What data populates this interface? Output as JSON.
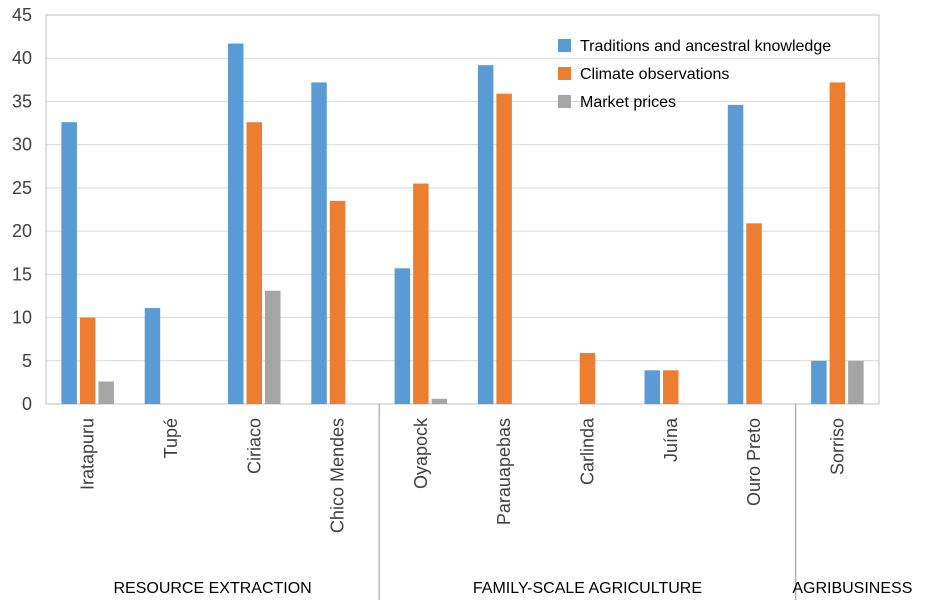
{
  "chart_data": {
    "type": "bar",
    "categories": [
      "Iratapuru",
      "Tupé",
      "Ciriaco",
      "Chico Mendes",
      "Oyapock",
      "Parauapebas",
      "Carlinda",
      "Juína",
      "Ouro Preto",
      "Sorriso"
    ],
    "series": [
      {
        "name": "Traditions and ancestral knowledge",
        "color": "#5b9bd5",
        "values": [
          32.6,
          11.1,
          41.7,
          37.2,
          15.7,
          39.2,
          0,
          3.9,
          34.6,
          5.0
        ]
      },
      {
        "name": "Climate observations",
        "color": "#ed7d31",
        "values": [
          10.0,
          0,
          32.6,
          23.5,
          25.5,
          35.9,
          5.9,
          3.9,
          20.9,
          37.2
        ]
      },
      {
        "name": "Market prices",
        "color": "#a5a5a5",
        "values": [
          2.6,
          0,
          13.1,
          0,
          0.6,
          0,
          0,
          0,
          0,
          5.0
        ]
      }
    ],
    "ylim": [
      0,
      45
    ],
    "yticks": [
      0,
      5,
      10,
      15,
      20,
      25,
      30,
      35,
      40,
      45
    ],
    "grid": true,
    "legend_position": "top-right",
    "groups": [
      {
        "label": "RESOURCE EXTRACTION",
        "categories": [
          "Iratapuru",
          "Tupé",
          "Ciriaco",
          "Chico Mendes"
        ]
      },
      {
        "label": "FAMILY-SCALE AGRICULTURE",
        "categories": [
          "Oyapock",
          "Parauapebas",
          "Carlinda",
          "Juína",
          "Ouro Preto"
        ]
      },
      {
        "label": "AGRIBUSINESS",
        "categories": [
          "Sorriso"
        ]
      }
    ]
  }
}
